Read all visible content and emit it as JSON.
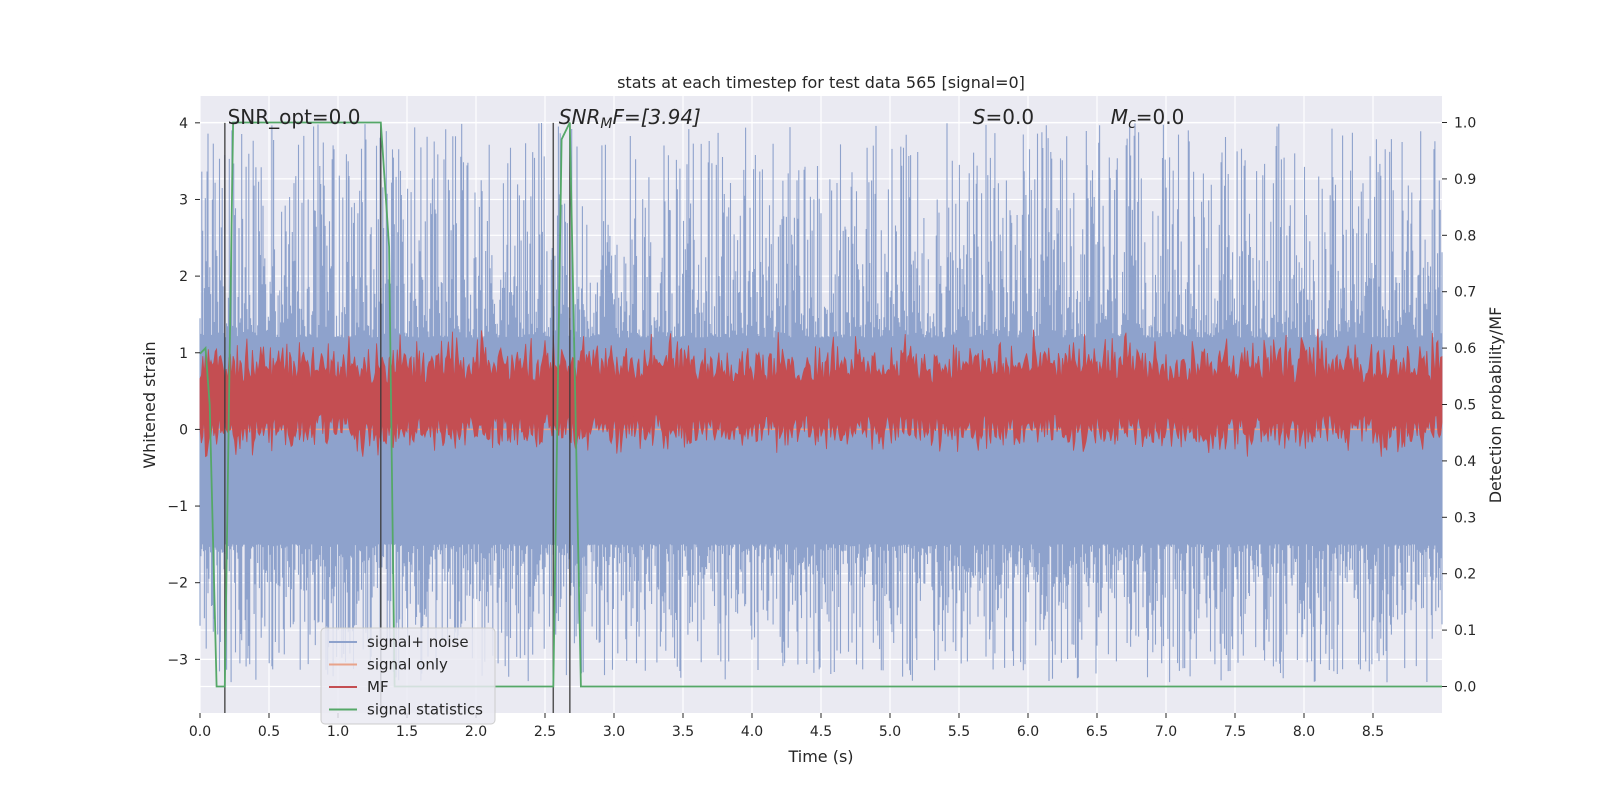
{
  "chart_data": {
    "type": "line",
    "title": "stats at each timestep for test data 565 [signal=0]",
    "xlabel": "Time (s)",
    "ylabel": "Whitened strain",
    "y2label": "Detection probability/MF",
    "xlim": [
      0,
      9.0
    ],
    "ylim": [
      -3.7,
      4.35
    ],
    "y2lim": [
      -0.047,
      1.047
    ],
    "xticks": [
      "0.0",
      "0.5",
      "1.0",
      "1.5",
      "2.0",
      "2.5",
      "3.0",
      "3.5",
      "4.0",
      "4.5",
      "5.0",
      "5.5",
      "6.0",
      "6.5",
      "7.0",
      "7.5",
      "8.0",
      "8.5"
    ],
    "yticks": [
      "−3",
      "−2",
      "−1",
      "0",
      "1",
      "2",
      "3",
      "4"
    ],
    "y2ticks": [
      "0.0",
      "0.1",
      "0.2",
      "0.3",
      "0.4",
      "0.5",
      "0.6",
      "0.7",
      "0.8",
      "0.9",
      "1.0"
    ],
    "grid": true,
    "legend_position": "lower-left",
    "annotations": [
      {
        "text": "SNR_opt=0.0",
        "italic": false
      },
      {
        "text": "SNR",
        "sub": "M",
        "rest": "F=[3.94]",
        "italic": true
      },
      {
        "text": "S",
        "rest": "=0.0",
        "italic": true
      },
      {
        "text": "M",
        "sub": "c",
        "rest": "=0.0",
        "italic": true
      }
    ],
    "markers_x": [
      0.18,
      1.31,
      2.56,
      2.68
    ],
    "series": [
      {
        "name": "signal+ noise",
        "color": "#8ea2cc",
        "axis": "left",
        "style": "noise",
        "amplitude_range": [
          -3.3,
          4.0
        ]
      },
      {
        "name": "signal only",
        "color": "#e8a38a",
        "axis": "left",
        "values_constant": 0.0
      },
      {
        "name": "MF",
        "color": "#c44e52",
        "axis": "right",
        "band": [
          0.44,
          0.58
        ]
      },
      {
        "name": "signal statistics",
        "color": "#55a868",
        "axis": "right",
        "x": [
          0.0,
          0.04,
          0.07,
          0.12,
          0.18,
          0.24,
          0.3,
          1.31,
          1.37,
          1.41,
          1.47,
          2.56,
          2.62,
          2.68,
          2.76,
          2.82,
          9.0
        ],
        "y": [
          0.59,
          0.6,
          0.5,
          0.0,
          0.0,
          1.0,
          1.0,
          1.0,
          0.78,
          0.0,
          0.0,
          0.0,
          0.97,
          1.0,
          0.0,
          0.0,
          0.0
        ]
      }
    ]
  }
}
